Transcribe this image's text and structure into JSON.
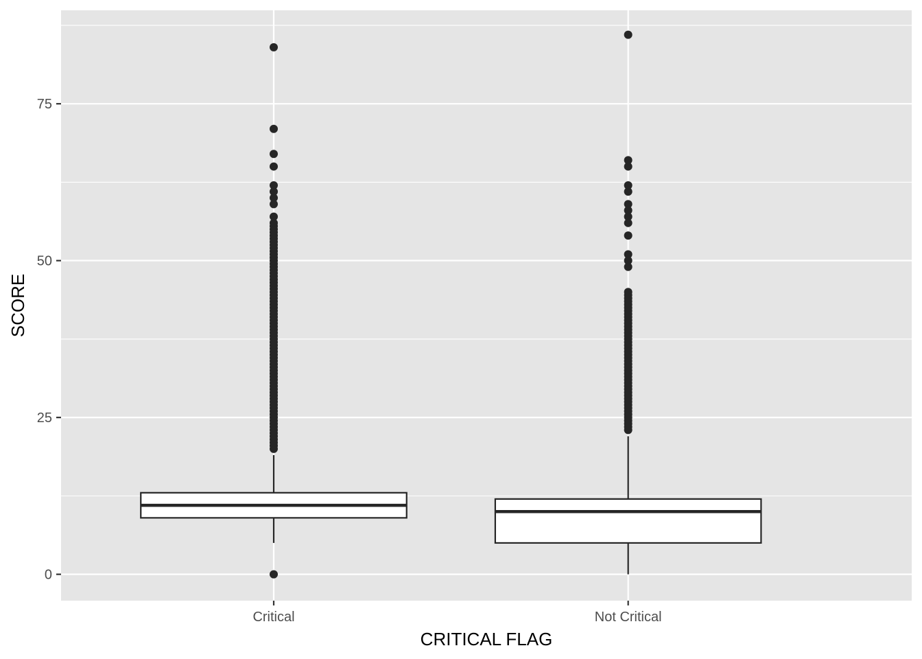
{
  "chart_data": {
    "type": "boxplot",
    "title": "",
    "xlabel": "CRITICAL FLAG",
    "ylabel": "SCORE",
    "ylim": [
      -4.2,
      89.9
    ],
    "yticks": [
      0,
      25,
      50,
      75
    ],
    "y_minor_ticks": [
      12.5,
      37.5,
      62.5,
      87.5
    ],
    "grid": true,
    "legend": "none",
    "categories": [
      "Critical",
      "Not Critical"
    ],
    "boxes": [
      {
        "category": "Critical",
        "q1": 9,
        "median": 11,
        "q3": 13,
        "whisker_low": 5,
        "whisker_high": 19,
        "outliers": [
          0,
          20,
          20.5,
          21,
          21.5,
          22,
          22.5,
          23,
          23.5,
          24,
          24.5,
          25,
          25.5,
          26,
          26.5,
          27,
          27.5,
          28,
          28.5,
          29,
          29.5,
          30,
          30.5,
          31,
          31.5,
          32,
          32.5,
          33,
          33.5,
          34,
          34.5,
          35,
          35.5,
          36,
          36.5,
          37,
          37.5,
          38,
          38.5,
          39,
          39.5,
          40,
          40.5,
          41,
          41.5,
          42,
          42.5,
          43,
          43.5,
          44,
          44.5,
          45,
          45.5,
          46,
          46.5,
          47,
          47.5,
          48,
          48.5,
          49,
          49.5,
          50,
          50.5,
          51,
          51.5,
          52,
          52.5,
          53,
          53.5,
          54,
          54.5,
          55,
          55.5,
          56,
          57,
          59,
          60,
          61,
          62,
          65,
          67,
          71,
          84
        ]
      },
      {
        "category": "Not Critical",
        "q1": 5,
        "median": 10,
        "q3": 12,
        "whisker_low": 0,
        "whisker_high": 22,
        "outliers": [
          23,
          23.5,
          24,
          24.5,
          25,
          25.5,
          26,
          26.5,
          27,
          27.5,
          28,
          28.5,
          29,
          29.5,
          30,
          30.5,
          31,
          31.5,
          32,
          32.5,
          33,
          33.5,
          34,
          34.5,
          35,
          35.5,
          36,
          36.5,
          37,
          37.5,
          38,
          38.5,
          39,
          39.5,
          40,
          40.5,
          41,
          41.5,
          42,
          42.5,
          43,
          43.5,
          44,
          44.5,
          45,
          49,
          50,
          51,
          54,
          56,
          57,
          58,
          59,
          61,
          62,
          65,
          66,
          86
        ]
      }
    ],
    "colors": {
      "panel": "#e5e5e5",
      "grid": "#ffffff",
      "box_fill": "#ffffff",
      "box_line": "#262626",
      "point": "#262626",
      "tick_text": "#4d4d4d",
      "title_text": "#000000"
    }
  }
}
